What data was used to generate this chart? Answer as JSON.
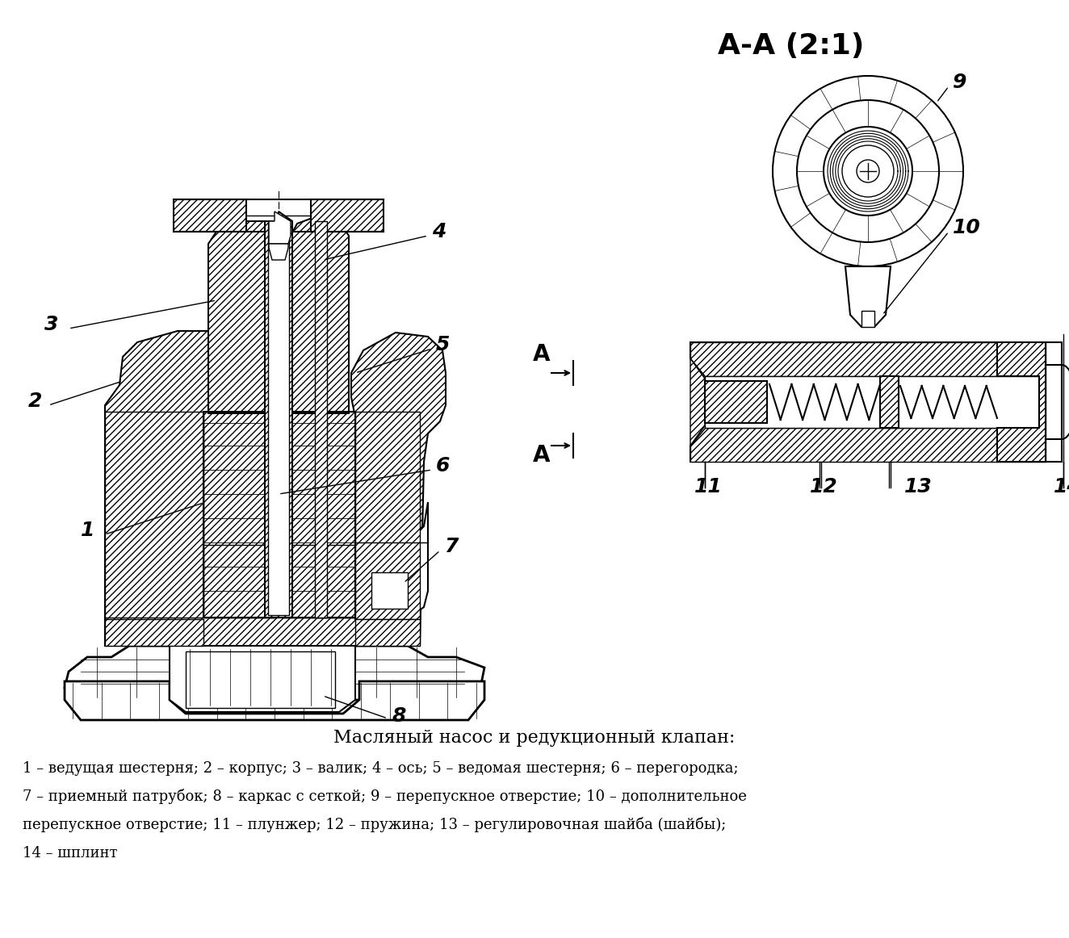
{
  "title": "Масляный насос и редукционный клапан:",
  "caption_line1": "1 – ведущая шестерня; 2 – корпус; 3 – валик; 4 – ось; 5 – ведомая шестерня; 6 – перегородка;",
  "caption_line2": "7 – приемный патрубок; 8 – каркас с сеткой; 9 – перепускное отверстие; 10 – дополнительное",
  "caption_line3": "перепускное отверстие; 11 – плунжер; 12 – пружина; 13 – регулировочная шайба (шайбы);",
  "caption_line4": "14 – шплинт",
  "section_label": "А-А (2:1)",
  "bg_color": "#ffffff",
  "line_color": "#000000"
}
